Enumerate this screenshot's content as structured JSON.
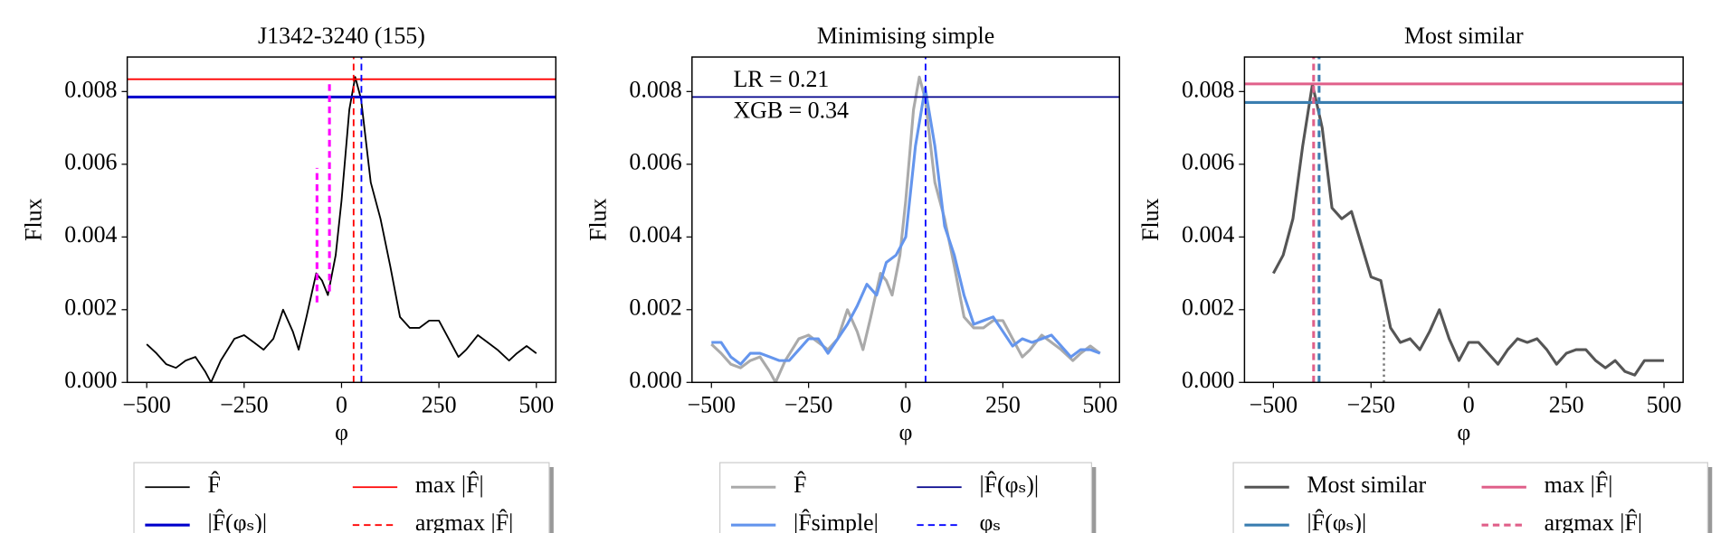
{
  "chart_data": [
    {
      "type": "line",
      "title": "J1342-3240 (155)",
      "xlabel": "φ",
      "ylabel": "Flux",
      "xlim": [
        -550,
        550
      ],
      "ylim": [
        0,
        0.00895
      ],
      "xticks": [
        {
          "value": -500,
          "label": "−500"
        },
        {
          "value": -250,
          "label": "−250"
        },
        0,
        250,
        500
      ],
      "yticks": [
        {
          "value": 0,
          "label": "0.000"
        },
        {
          "value": 0.002,
          "label": "0.002"
        },
        {
          "value": 0.004,
          "label": "0.004"
        },
        {
          "value": 0.006,
          "label": "0.006"
        },
        {
          "value": 0.008,
          "label": "0.008"
        }
      ],
      "series": [
        {
          "kind": "curve",
          "name": "F̂",
          "color": "#000000",
          "width": 1.5,
          "x": [
            -500,
            -475,
            -450,
            -425,
            -400,
            -375,
            -350,
            -335,
            -310,
            -275,
            -250,
            -225,
            -200,
            -175,
            -150,
            -125,
            -110,
            -90,
            -65,
            -50,
            -35,
            -15,
            0,
            20,
            35,
            50,
            75,
            100,
            125,
            150,
            175,
            200,
            225,
            250,
            275,
            300,
            320,
            350,
            375,
            400,
            430,
            450,
            475,
            500
          ],
          "values": [
            0.00105,
            0.0008,
            0.0005,
            0.0004,
            0.0006,
            0.0007,
            0.0003,
            0.0,
            0.0006,
            0.0012,
            0.0013,
            0.0011,
            0.0009,
            0.0012,
            0.002,
            0.0014,
            0.0009,
            0.0018,
            0.003,
            0.0028,
            0.0024,
            0.0035,
            0.005,
            0.0075,
            0.0084,
            0.0078,
            0.0055,
            0.0045,
            0.0032,
            0.0018,
            0.0015,
            0.0015,
            0.0017,
            0.0017,
            0.0012,
            0.0007,
            0.0009,
            0.0013,
            0.0011,
            0.0009,
            0.0006,
            0.0008,
            0.001,
            0.0008
          ]
        },
        {
          "kind": "hline",
          "name": "|F̂(φₛ)|",
          "color": "#0000cc",
          "width": 2.5,
          "value": 0.00785
        },
        {
          "kind": "hline",
          "name": "max |F̂|",
          "color": "#ff0000",
          "width": 1.5,
          "value": 0.00834
        },
        {
          "kind": "vline",
          "name": "argmax |F̂|",
          "color": "#ff0000",
          "width": 1.5,
          "dash": true,
          "value": 31
        },
        {
          "kind": "vline",
          "color": "#0000ff",
          "width": 1.5,
          "dash": true,
          "value": 51
        },
        {
          "kind": "vline",
          "color": "#ff00ff",
          "width": 2.5,
          "dash": true,
          "value": -63,
          "ymin": 0.0022,
          "ymax": 0.0059
        },
        {
          "kind": "vline",
          "color": "#ff00ff",
          "width": 2.5,
          "dash": true,
          "value": -31,
          "ymin": 0.0025,
          "ymax": 0.0083
        }
      ]
    },
    {
      "type": "line",
      "title": "Minimising simple",
      "xlabel": "φ",
      "ylabel": "Flux",
      "annotations": [
        "LR = 0.21",
        "XGB = 0.34"
      ],
      "xlim": [
        -550,
        550
      ],
      "ylim": [
        0,
        0.00895
      ],
      "xticks": [
        {
          "value": -500,
          "label": "−500"
        },
        {
          "value": -250,
          "label": "−250"
        },
        0,
        250,
        500
      ],
      "yticks": [
        {
          "value": 0,
          "label": "0.000"
        },
        {
          "value": 0.002,
          "label": "0.002"
        },
        {
          "value": 0.004,
          "label": "0.004"
        },
        {
          "value": 0.006,
          "label": "0.006"
        },
        {
          "value": 0.008,
          "label": "0.008"
        }
      ],
      "series": [
        {
          "kind": "curve",
          "name": "F̂",
          "color": "#aaaaaa",
          "width": 2.5,
          "x": [
            -500,
            -475,
            -450,
            -425,
            -400,
            -375,
            -350,
            -335,
            -310,
            -275,
            -250,
            -225,
            -200,
            -175,
            -150,
            -125,
            -110,
            -90,
            -65,
            -50,
            -35,
            -15,
            0,
            20,
            35,
            50,
            75,
            100,
            125,
            150,
            175,
            200,
            225,
            250,
            275,
            300,
            320,
            350,
            375,
            400,
            430,
            450,
            475,
            500
          ],
          "values": [
            0.00105,
            0.0008,
            0.0005,
            0.0004,
            0.0006,
            0.0007,
            0.0003,
            0.0,
            0.0006,
            0.0012,
            0.0013,
            0.0011,
            0.0009,
            0.0012,
            0.002,
            0.0014,
            0.0009,
            0.0018,
            0.003,
            0.0028,
            0.0024,
            0.0035,
            0.005,
            0.0075,
            0.0084,
            0.0078,
            0.0055,
            0.0045,
            0.0032,
            0.0018,
            0.0015,
            0.0015,
            0.0017,
            0.0017,
            0.0012,
            0.0007,
            0.0009,
            0.0013,
            0.0011,
            0.0009,
            0.0006,
            0.0008,
            0.001,
            0.0008
          ]
        },
        {
          "kind": "curve",
          "name": "|F̂simple|",
          "color": "#6495ed",
          "width": 2.5,
          "x": [
            -500,
            -475,
            -450,
            -425,
            -400,
            -375,
            -350,
            -325,
            -300,
            -275,
            -250,
            -225,
            -200,
            -175,
            -150,
            -125,
            -100,
            -75,
            -50,
            -25,
            0,
            25,
            50,
            75,
            100,
            125,
            150,
            175,
            200,
            225,
            250,
            275,
            300,
            325,
            350,
            375,
            400,
            425,
            450,
            475,
            500
          ],
          "values": [
            0.0011,
            0.0011,
            0.0007,
            0.0005,
            0.0008,
            0.0008,
            0.0007,
            0.0006,
            0.0006,
            0.0009,
            0.0012,
            0.0012,
            0.0008,
            0.0012,
            0.0016,
            0.0021,
            0.0027,
            0.0024,
            0.0033,
            0.0035,
            0.004,
            0.0065,
            0.0081,
            0.0065,
            0.0043,
            0.0035,
            0.0024,
            0.0016,
            0.0017,
            0.0018,
            0.0014,
            0.001,
            0.0012,
            0.0011,
            0.0012,
            0.0013,
            0.001,
            0.0007,
            0.0009,
            0.0009,
            0.0008
          ]
        },
        {
          "kind": "hline",
          "name": "|F̂(φₛ)|",
          "color": "#00008b",
          "width": 1.5,
          "value": 0.00785
        },
        {
          "kind": "vline",
          "name": "φₛ",
          "color": "#0000ff",
          "width": 1.5,
          "dash": true,
          "value": 51
        }
      ]
    },
    {
      "type": "line",
      "title": "Most similar",
      "xlabel": "φ",
      "ylabel": "Flux",
      "xlim": [
        -574,
        549
      ],
      "ylim": [
        0,
        0.00895
      ],
      "xticks": [
        {
          "value": -500,
          "label": "−500"
        },
        {
          "value": -250,
          "label": "−250"
        },
        0,
        250,
        500
      ],
      "yticks": [
        {
          "value": 0,
          "label": "0.000"
        },
        {
          "value": 0.002,
          "label": "0.002"
        },
        {
          "value": 0.004,
          "label": "0.004"
        },
        {
          "value": 0.006,
          "label": "0.006"
        },
        {
          "value": 0.008,
          "label": "0.008"
        }
      ],
      "series": [
        {
          "kind": "curve",
          "name": "Most similar",
          "color": "#555555",
          "width": 2.5,
          "x": [
            -500,
            -475,
            -450,
            -425,
            -400,
            -375,
            -350,
            -325,
            -300,
            -275,
            -250,
            -225,
            -200,
            -175,
            -150,
            -125,
            -100,
            -75,
            -50,
            -25,
            0,
            25,
            50,
            75,
            100,
            125,
            150,
            175,
            200,
            225,
            250,
            275,
            300,
            325,
            350,
            375,
            400,
            425,
            450,
            475,
            500
          ],
          "values": [
            0.003,
            0.0035,
            0.0045,
            0.0065,
            0.0082,
            0.007,
            0.0048,
            0.0045,
            0.0047,
            0.0038,
            0.0029,
            0.0028,
            0.0015,
            0.0011,
            0.0012,
            0.0009,
            0.0014,
            0.002,
            0.0012,
            0.0006,
            0.0011,
            0.0011,
            0.0008,
            0.0005,
            0.0009,
            0.0012,
            0.0011,
            0.0012,
            0.0009,
            0.0005,
            0.0008,
            0.0009,
            0.0009,
            0.0006,
            0.0004,
            0.0006,
            0.0003,
            0.0002,
            0.0006,
            0.0006,
            0.0006
          ]
        },
        {
          "kind": "hline",
          "name": "|F̂(φₛ)|",
          "color": "#3a7eb0",
          "width": 2.5,
          "value": 0.0077
        },
        {
          "kind": "hline",
          "name": "max |F̂|",
          "color": "#e0608a",
          "width": 2.5,
          "value": 0.00821
        },
        {
          "kind": "vline",
          "name": "argmax |F̂|",
          "color": "#e0608a",
          "width": 2.5,
          "dash": true,
          "value": -397
        },
        {
          "kind": "vline",
          "color": "#3a7eb0",
          "width": 2.5,
          "dash": true,
          "value": -383
        },
        {
          "kind": "vline",
          "color": "#777777",
          "width": 2,
          "dot": true,
          "value": -217,
          "ymin": 0,
          "ymax": 0.0017
        }
      ]
    }
  ]
}
